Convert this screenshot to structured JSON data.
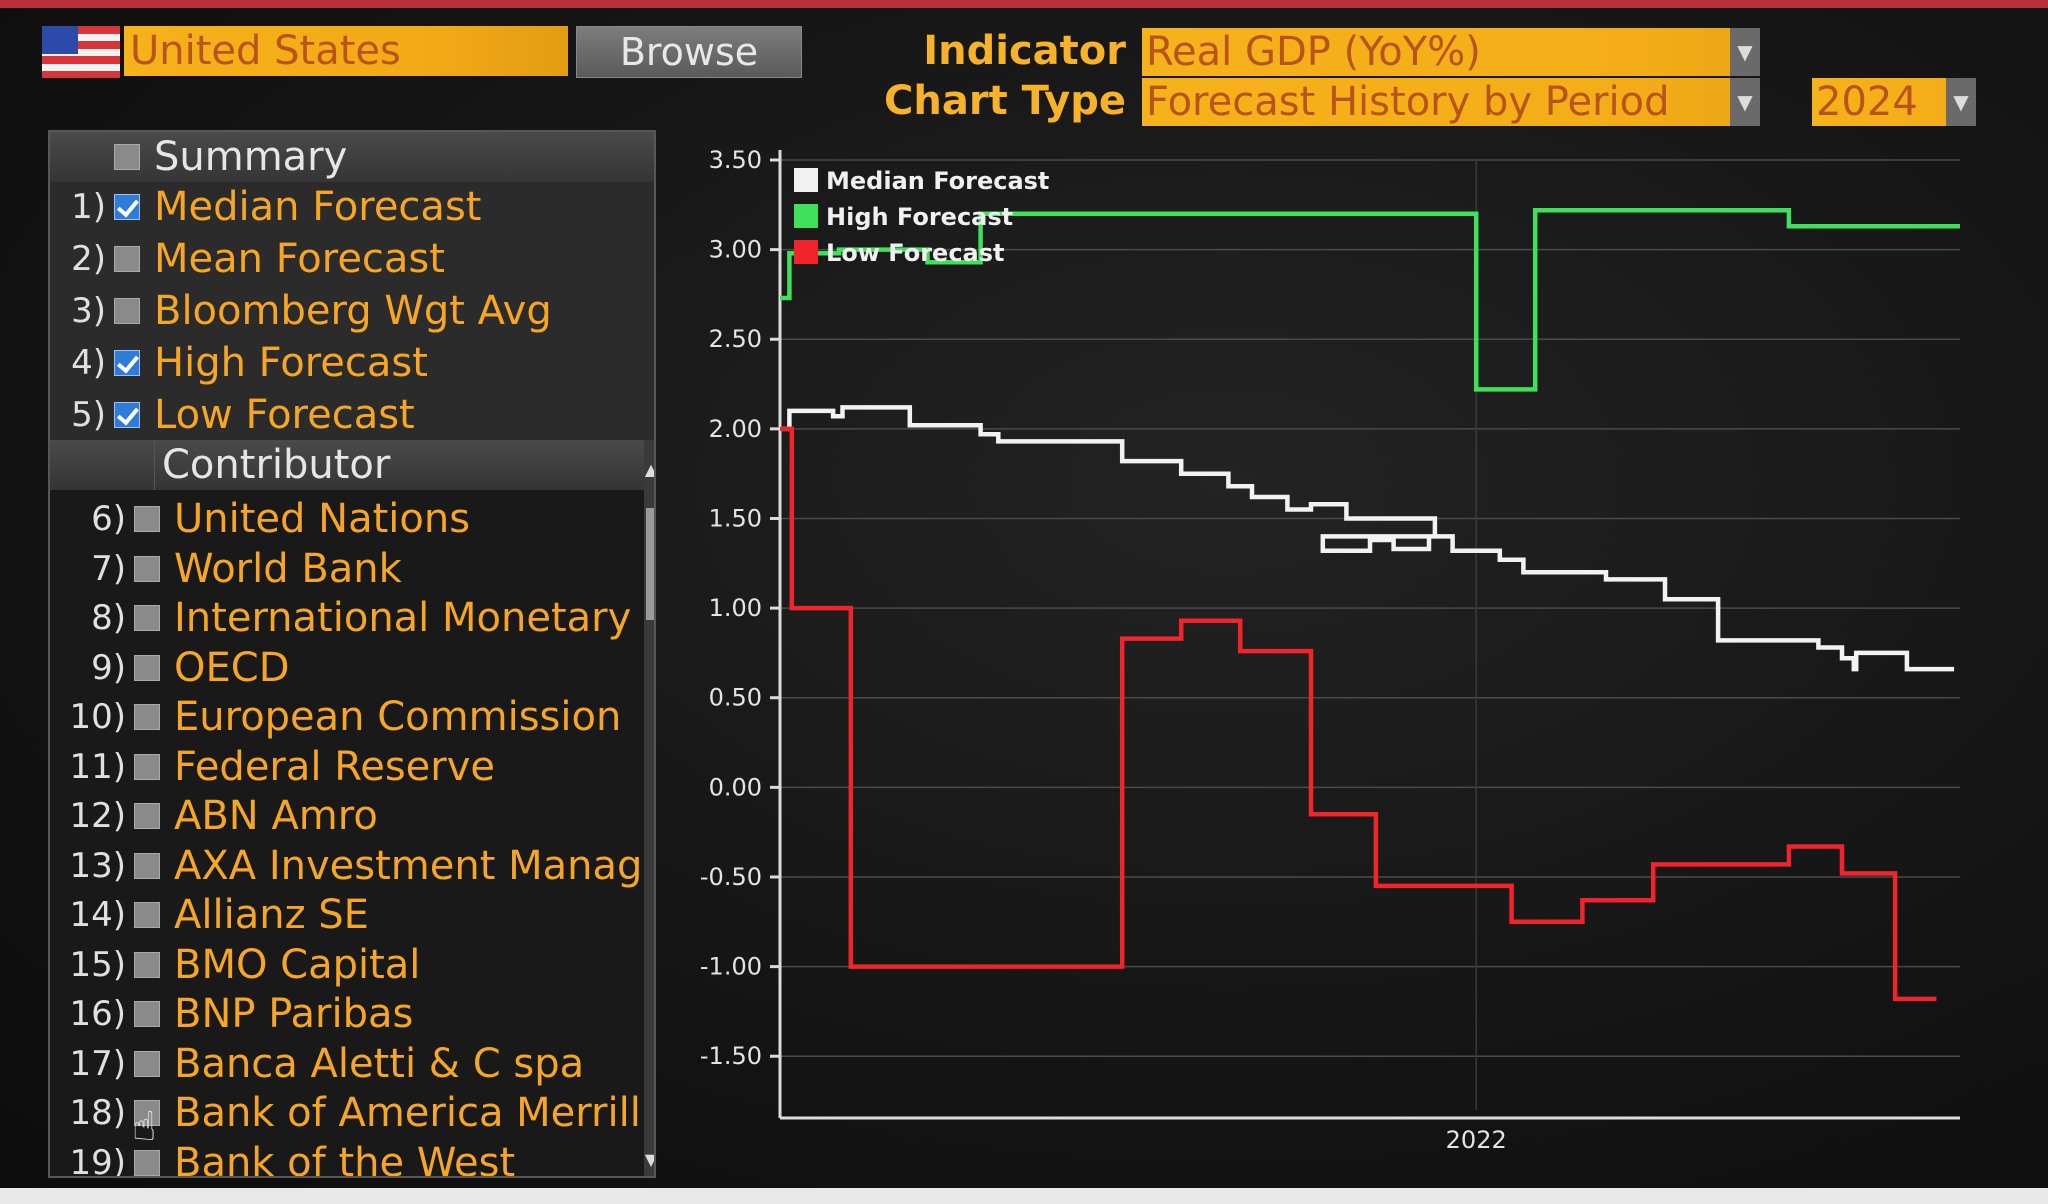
{
  "header": {
    "country": "United States",
    "browse_label": "Browse",
    "indicator_label": "Indicator",
    "indicator_value": "Real GDP (YoY%)",
    "chart_type_label": "Chart Type",
    "chart_type_value": "Forecast History by Period",
    "period_value": "2024"
  },
  "sidebar": {
    "summary_header": "Summary",
    "summary_items": [
      {
        "num": "1)",
        "label": "Median Forecast",
        "checked": true
      },
      {
        "num": "2)",
        "label": "Mean Forecast",
        "checked": false
      },
      {
        "num": "3)",
        "label": "Bloomberg Wgt Avg",
        "checked": false
      },
      {
        "num": "4)",
        "label": "High Forecast",
        "checked": true
      },
      {
        "num": "5)",
        "label": "Low Forecast",
        "checked": true
      }
    ],
    "contributor_header": "Contributor",
    "contributors": [
      {
        "num": "6)",
        "label": "United Nations"
      },
      {
        "num": "7)",
        "label": "World Bank"
      },
      {
        "num": "8)",
        "label": "International Monetary F"
      },
      {
        "num": "9)",
        "label": "OECD"
      },
      {
        "num": "10)",
        "label": "European Commission"
      },
      {
        "num": "11)",
        "label": "Federal Reserve"
      },
      {
        "num": "12)",
        "label": "ABN Amro"
      },
      {
        "num": "13)",
        "label": "AXA Investment Manager"
      },
      {
        "num": "14)",
        "label": "Allianz SE"
      },
      {
        "num": "15)",
        "label": "BMO Capital"
      },
      {
        "num": "16)",
        "label": "BNP Paribas"
      },
      {
        "num": "17)",
        "label": "Banca Aletti & C spa"
      },
      {
        "num": "18)",
        "label": "Bank of America Merrill I"
      },
      {
        "num": "19)",
        "label": "Bank of the West"
      }
    ]
  },
  "colors": {
    "accent_orange": "#f6a623",
    "median": "#f2f2f2",
    "high": "#3fe05a",
    "low": "#f0242a"
  },
  "chart_data": {
    "type": "line",
    "ylim": [
      -1.8,
      3.5
    ],
    "yticks": [
      "3.50",
      "3.00",
      "2.50",
      "2.00",
      "1.50",
      "1.00",
      "0.50",
      "0.00",
      "-0.50",
      "-1.00",
      "-1.50"
    ],
    "ytick_values": [
      3.5,
      3.0,
      2.5,
      2.0,
      1.5,
      1.0,
      0.5,
      0.0,
      -0.5,
      -1.0,
      -1.5
    ],
    "xlim": [
      0,
      100
    ],
    "xticks": [
      {
        "label": "2022",
        "value": 59
      }
    ],
    "legend_position": "top-left",
    "series": [
      {
        "name": "Median Forecast",
        "color": "#f2f2f2",
        "points": [
          [
            0,
            2.0
          ],
          [
            0.8,
            2.0
          ],
          [
            0.8,
            2.1
          ],
          [
            4.5,
            2.1
          ],
          [
            4.5,
            2.07
          ],
          [
            5.3,
            2.07
          ],
          [
            5.3,
            2.12
          ],
          [
            11,
            2.12
          ],
          [
            11,
            2.02
          ],
          [
            17,
            2.02
          ],
          [
            17,
            1.97
          ],
          [
            18.5,
            1.97
          ],
          [
            18.5,
            1.93
          ],
          [
            29,
            1.93
          ],
          [
            29,
            1.82
          ],
          [
            34,
            1.82
          ],
          [
            34,
            1.75
          ],
          [
            38,
            1.75
          ],
          [
            38,
            1.68
          ],
          [
            40,
            1.68
          ],
          [
            40,
            1.62
          ],
          [
            43,
            1.62
          ],
          [
            43,
            1.55
          ],
          [
            45,
            1.55
          ],
          [
            45,
            1.58
          ],
          [
            48,
            1.58
          ],
          [
            48,
            1.5
          ],
          [
            55.5,
            1.5
          ],
          [
            55.5,
            1.4
          ],
          [
            53,
            1.4
          ],
          [
            46,
            1.4
          ],
          [
            46,
            1.32
          ],
          [
            50,
            1.32
          ],
          [
            50,
            1.38
          ],
          [
            52,
            1.38
          ],
          [
            52,
            1.33
          ],
          [
            55,
            1.33
          ],
          [
            55,
            1.4
          ],
          [
            57,
            1.4
          ],
          [
            57,
            1.32
          ],
          [
            61,
            1.32
          ],
          [
            61,
            1.27
          ],
          [
            63,
            1.27
          ],
          [
            63,
            1.2
          ],
          [
            70,
            1.2
          ],
          [
            70,
            1.16
          ],
          [
            75,
            1.16
          ],
          [
            75,
            1.05
          ],
          [
            79.5,
            1.05
          ],
          [
            79.5,
            0.82
          ],
          [
            88,
            0.82
          ],
          [
            88,
            0.78
          ],
          [
            90,
            0.78
          ],
          [
            90,
            0.72
          ],
          [
            91,
            0.72
          ],
          [
            91,
            0.66
          ],
          [
            91.2,
            0.66
          ],
          [
            91.2,
            0.75
          ],
          [
            95.5,
            0.75
          ],
          [
            95.5,
            0.66
          ],
          [
            99.5,
            0.66
          ]
        ]
      },
      {
        "name": "High Forecast",
        "color": "#3fe05a",
        "points": [
          [
            0,
            2.73
          ],
          [
            0.8,
            2.73
          ],
          [
            0.8,
            2.98
          ],
          [
            5,
            2.98
          ],
          [
            5,
            3.0
          ],
          [
            12.5,
            3.0
          ],
          [
            12.5,
            2.93
          ],
          [
            17,
            2.93
          ],
          [
            17,
            3.2
          ],
          [
            59,
            3.2
          ],
          [
            59,
            2.22
          ],
          [
            64,
            2.22
          ],
          [
            64,
            3.22
          ],
          [
            85.5,
            3.22
          ],
          [
            85.5,
            3.13
          ],
          [
            100,
            3.13
          ]
        ]
      },
      {
        "name": "Low Forecast",
        "color": "#f0242a",
        "points": [
          [
            0,
            2.0
          ],
          [
            1.0,
            2.0
          ],
          [
            1.0,
            1.0
          ],
          [
            6,
            1.0
          ],
          [
            6,
            -1.0
          ],
          [
            29,
            -1.0
          ],
          [
            29,
            0.83
          ],
          [
            34,
            0.83
          ],
          [
            34,
            0.93
          ],
          [
            39,
            0.93
          ],
          [
            39,
            0.76
          ],
          [
            45,
            0.76
          ],
          [
            45,
            -0.15
          ],
          [
            50.5,
            -0.15
          ],
          [
            50.5,
            -0.55
          ],
          [
            62,
            -0.55
          ],
          [
            62,
            -0.75
          ],
          [
            68,
            -0.75
          ],
          [
            68,
            -0.63
          ],
          [
            74,
            -0.63
          ],
          [
            74,
            -0.43
          ],
          [
            85.5,
            -0.43
          ],
          [
            85.5,
            -0.33
          ],
          [
            90,
            -0.33
          ],
          [
            90,
            -0.48
          ],
          [
            94.5,
            -0.48
          ],
          [
            94.5,
            -1.18
          ],
          [
            98,
            -1.18
          ]
        ]
      }
    ]
  }
}
